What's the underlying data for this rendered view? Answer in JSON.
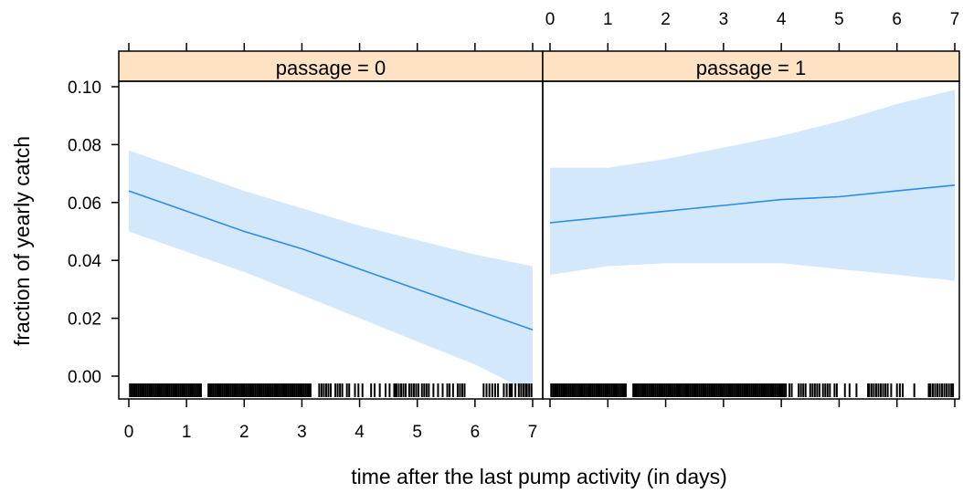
{
  "chart_data": {
    "type": "line",
    "title": "",
    "xlabel": "time after the last pump activity (in days)",
    "ylabel": "fraction of yearly catch",
    "xlim": [
      0,
      7
    ],
    "ylim": [
      0,
      0.1
    ],
    "x_ticks": [
      "0",
      "1",
      "2",
      "3",
      "4",
      "5",
      "6",
      "7"
    ],
    "y_ticks": [
      "0.00",
      "0.02",
      "0.04",
      "0.06",
      "0.08",
      "0.10"
    ],
    "grid": false,
    "colors": {
      "line": "#2b8ce6",
      "band": "#d4e8fb",
      "strip": "#fde3c4",
      "rug": "#000000"
    },
    "panels": [
      {
        "strip_label": "passage = 0",
        "fit": {
          "x": [
            0,
            1,
            2,
            3,
            4,
            5,
            6,
            7
          ],
          "y": [
            0.064,
            0.057,
            0.05,
            0.044,
            0.037,
            0.03,
            0.023,
            0.016
          ]
        },
        "ci_lower": {
          "x": [
            0,
            1,
            2,
            3,
            4,
            5,
            6,
            7
          ],
          "y": [
            0.05,
            0.043,
            0.036,
            0.028,
            0.02,
            0.012,
            0.004,
            -0.006
          ]
        },
        "ci_upper": {
          "x": [
            0,
            1,
            2,
            3,
            4,
            5,
            6,
            7
          ],
          "y": [
            0.078,
            0.071,
            0.064,
            0.058,
            0.052,
            0.047,
            0.042,
            0.038
          ]
        },
        "rug": [
          0.02,
          0.05,
          0.08,
          0.11,
          0.14,
          0.17,
          0.2,
          0.23,
          0.26,
          0.29,
          0.32,
          0.35,
          0.38,
          0.41,
          0.44,
          0.47,
          0.5,
          0.53,
          0.56,
          0.59,
          0.62,
          0.65,
          0.68,
          0.71,
          0.74,
          0.77,
          0.8,
          0.83,
          0.86,
          0.89,
          0.92,
          0.95,
          0.98,
          1.01,
          1.04,
          1.07,
          1.1,
          1.13,
          1.16,
          1.19,
          1.22,
          1.25,
          1.38,
          1.41,
          1.44,
          1.47,
          1.5,
          1.53,
          1.56,
          1.59,
          1.62,
          1.65,
          1.68,
          1.71,
          1.74,
          1.77,
          1.8,
          1.83,
          1.86,
          1.89,
          1.92,
          1.95,
          1.98,
          2.01,
          2.04,
          2.07,
          2.1,
          2.13,
          2.16,
          2.19,
          2.22,
          2.25,
          2.28,
          2.31,
          2.34,
          2.37,
          2.4,
          2.43,
          2.46,
          2.49,
          2.52,
          2.55,
          2.58,
          2.61,
          2.64,
          2.67,
          2.7,
          2.73,
          2.76,
          2.79,
          2.82,
          2.85,
          2.88,
          2.91,
          2.94,
          2.97,
          3.0,
          3.03,
          3.06,
          3.09,
          3.12,
          3.15,
          3.3,
          3.34,
          3.38,
          3.42,
          3.46,
          3.5,
          3.58,
          3.62,
          3.66,
          3.7,
          3.78,
          3.82,
          3.92,
          3.98,
          4.05,
          4.2,
          4.26,
          4.35,
          4.45,
          4.52,
          4.6,
          4.62,
          4.64,
          4.68,
          4.72,
          4.76,
          4.8,
          4.86,
          4.9,
          4.94,
          4.98,
          5.02,
          5.08,
          5.12,
          5.16,
          5.2,
          5.28,
          5.36,
          5.44,
          5.52,
          5.56,
          5.62,
          5.7,
          5.74,
          5.78,
          5.82,
          6.15,
          6.2,
          6.25,
          6.3,
          6.35,
          6.4,
          6.5,
          6.55,
          6.6,
          6.62,
          6.64,
          6.7,
          6.76,
          6.8,
          6.84,
          6.88,
          6.9,
          6.94,
          6.98
        ]
      },
      {
        "strip_label": "passage = 1",
        "fit": {
          "x": [
            0,
            1,
            2,
            3,
            4,
            5,
            6,
            7
          ],
          "y": [
            0.053,
            0.055,
            0.057,
            0.059,
            0.061,
            0.062,
            0.064,
            0.066
          ]
        },
        "ci_lower": {
          "x": [
            0,
            1,
            2,
            3,
            4,
            5,
            6,
            7
          ],
          "y": [
            0.035,
            0.038,
            0.039,
            0.039,
            0.039,
            0.037,
            0.035,
            0.033
          ]
        },
        "ci_upper": {
          "x": [
            0,
            1,
            2,
            3,
            4,
            5,
            6,
            7
          ],
          "y": [
            0.072,
            0.072,
            0.075,
            0.079,
            0.083,
            0.088,
            0.094,
            0.099
          ]
        },
        "rug": [
          0.02,
          0.05,
          0.08,
          0.11,
          0.14,
          0.17,
          0.2,
          0.23,
          0.26,
          0.29,
          0.32,
          0.35,
          0.38,
          0.41,
          0.44,
          0.47,
          0.5,
          0.53,
          0.56,
          0.59,
          0.62,
          0.65,
          0.68,
          0.71,
          0.74,
          0.77,
          0.8,
          0.83,
          0.86,
          0.89,
          0.92,
          0.95,
          0.98,
          1.01,
          1.04,
          1.07,
          1.1,
          1.13,
          1.16,
          1.19,
          1.22,
          1.25,
          1.28,
          1.31,
          1.44,
          1.47,
          1.5,
          1.53,
          1.56,
          1.59,
          1.62,
          1.65,
          1.68,
          1.71,
          1.74,
          1.77,
          1.8,
          1.83,
          1.86,
          1.89,
          1.92,
          1.95,
          1.98,
          2.01,
          2.04,
          2.07,
          2.1,
          2.13,
          2.16,
          2.19,
          2.22,
          2.25,
          2.28,
          2.31,
          2.34,
          2.37,
          2.4,
          2.43,
          2.46,
          2.49,
          2.52,
          2.55,
          2.58,
          2.61,
          2.64,
          2.67,
          2.7,
          2.73,
          2.76,
          2.79,
          2.82,
          2.85,
          2.88,
          2.91,
          2.94,
          2.97,
          3.0,
          3.03,
          3.06,
          3.09,
          3.12,
          3.15,
          3.18,
          3.21,
          3.24,
          3.27,
          3.3,
          3.33,
          3.36,
          3.39,
          3.42,
          3.45,
          3.48,
          3.51,
          3.54,
          3.57,
          3.6,
          3.63,
          3.66,
          3.69,
          3.72,
          3.75,
          3.78,
          3.81,
          3.84,
          3.87,
          3.9,
          3.93,
          3.96,
          3.99,
          4.02,
          4.05,
          4.08,
          4.14,
          4.18,
          4.3,
          4.34,
          4.38,
          4.42,
          4.5,
          4.54,
          4.58,
          4.62,
          4.66,
          4.72,
          4.76,
          4.8,
          4.84,
          4.92,
          4.96,
          5.1,
          5.18,
          5.3,
          5.5,
          5.52,
          5.56,
          5.6,
          5.64,
          5.68,
          5.72,
          5.76,
          5.8,
          5.84,
          5.9,
          6.0,
          6.05,
          6.1,
          6.3,
          6.55,
          6.58,
          6.62,
          6.66,
          6.7,
          6.74,
          6.78,
          6.82,
          6.86,
          6.9,
          6.94,
          6.97
        ]
      }
    ]
  }
}
